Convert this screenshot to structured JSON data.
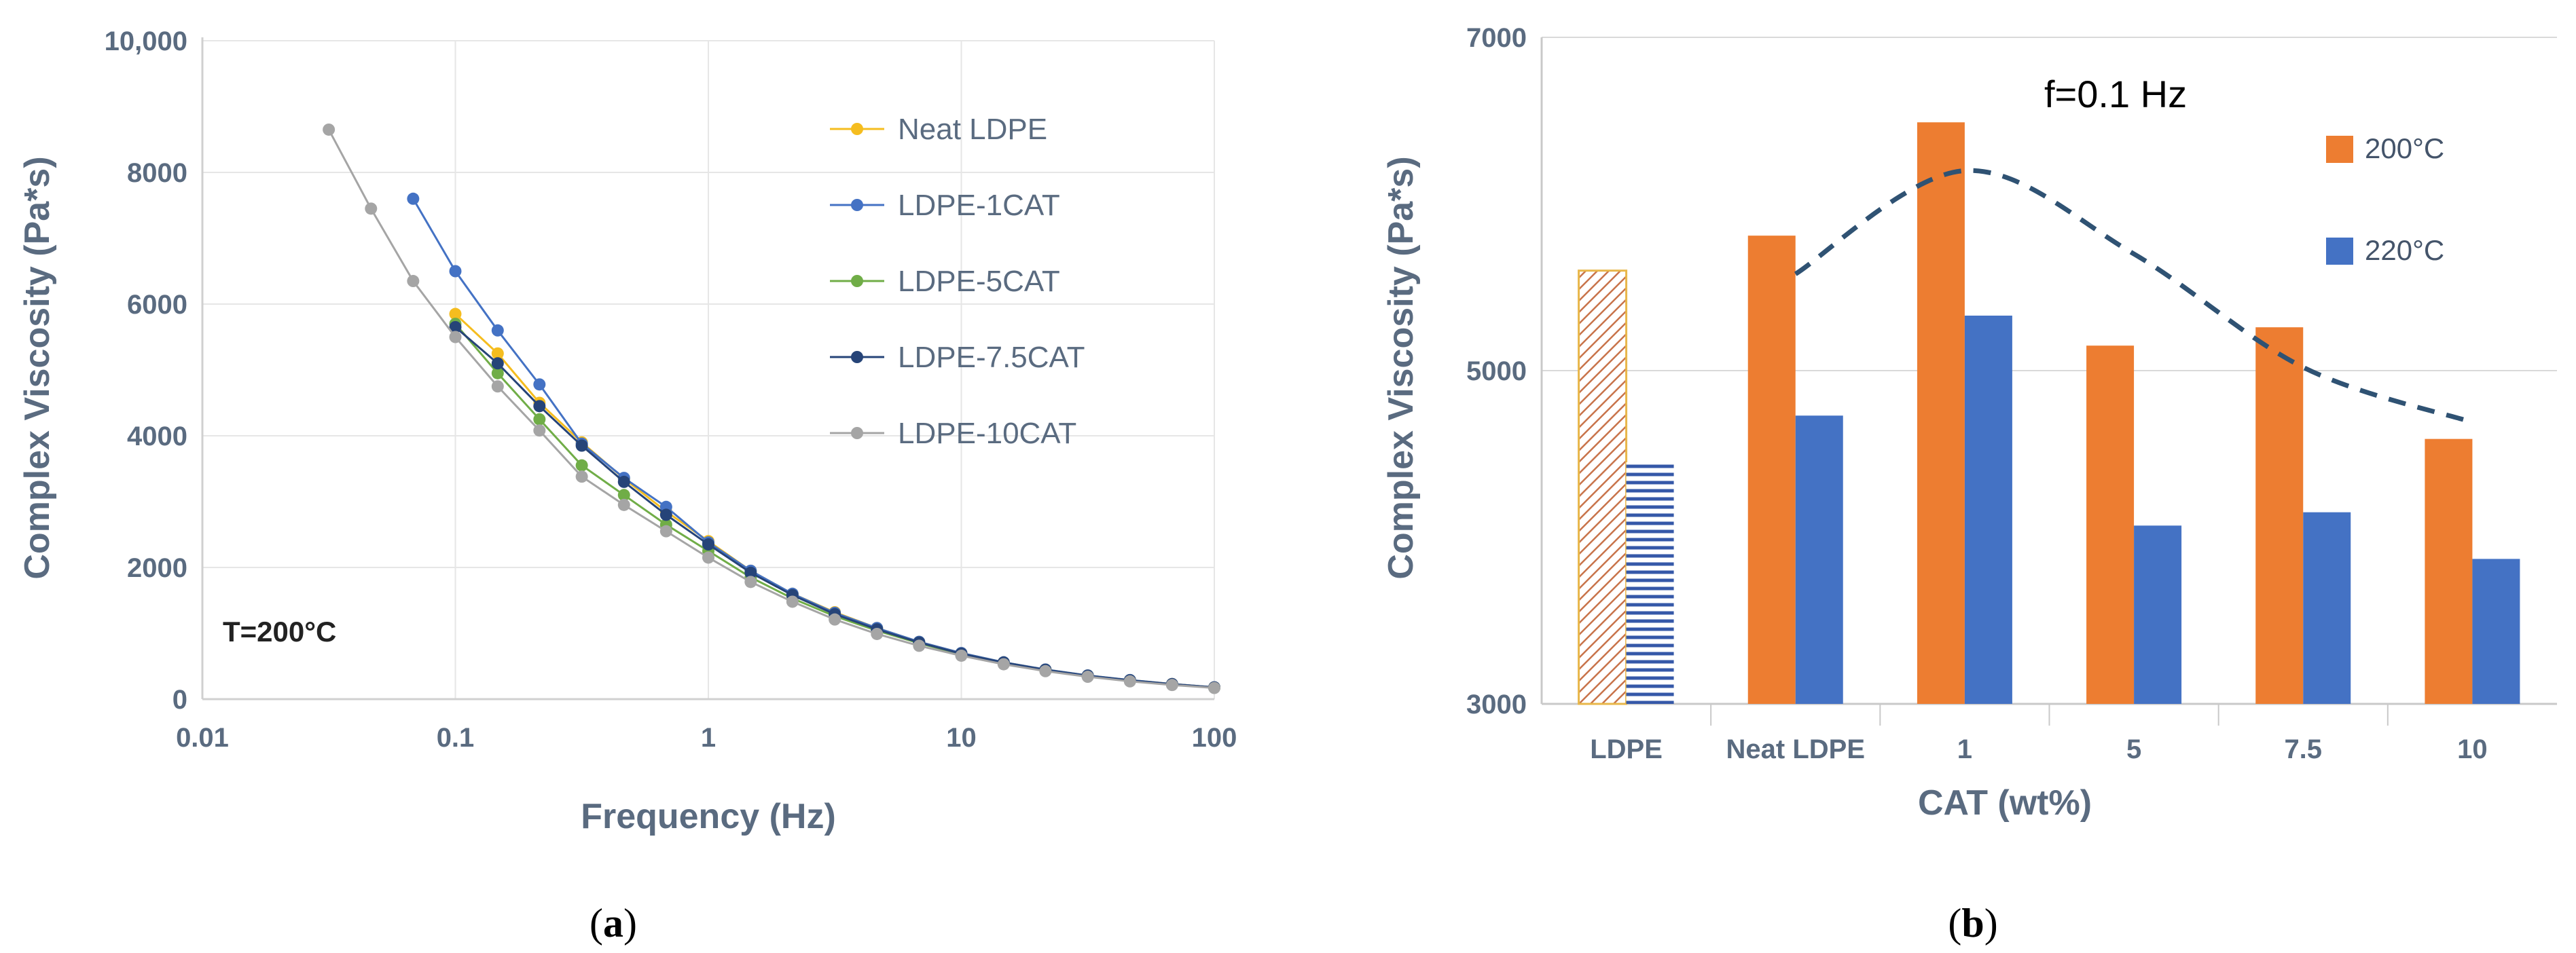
{
  "chart_data": [
    {
      "type": "line",
      "panel": "a",
      "caption": {
        "open": "(",
        "letter": "a",
        "close": ")"
      },
      "xlabel": "Frequency (Hz)",
      "ylabel": "Complex Viscosity (Pa*s)",
      "xscale": "log",
      "xlim": [
        0.01,
        100
      ],
      "ylim": [
        0,
        10000
      ],
      "xticks": [
        0.01,
        0.1,
        1,
        10,
        100
      ],
      "xtick_labels": [
        "0.01",
        "0.1",
        "1",
        "10",
        "100"
      ],
      "yticks": [
        0,
        2000,
        4000,
        6000,
        8000,
        10000
      ],
      "ytick_labels": [
        "0",
        "2000",
        "4000",
        "6000",
        "8000",
        "10,000"
      ],
      "annotation": "T=200°C",
      "legend_position": "top-right",
      "series": [
        {
          "name": "Neat LDPE",
          "color": "#f5bd1f",
          "x": [
            0.1,
            0.147,
            0.215,
            0.316,
            0.464,
            0.681,
            1,
            1.47,
            2.15,
            3.16,
            4.64,
            6.81,
            10,
            14.7,
            21.5,
            31.6,
            46.4,
            68.1,
            100
          ],
          "y": [
            5850,
            5250,
            4500,
            3900,
            3350,
            2850,
            2400,
            1950,
            1600,
            1320,
            1080,
            870,
            700,
            560,
            450,
            360,
            290,
            230,
            180
          ]
        },
        {
          "name": "LDPE-1CAT",
          "color": "#4472c4",
          "x": [
            0.0681,
            0.1,
            0.147,
            0.215,
            0.316,
            0.464,
            0.681,
            1,
            1.47,
            2.15,
            3.16,
            4.64,
            6.81,
            10,
            14.7,
            21.5,
            31.6,
            46.4,
            68.1,
            100
          ],
          "y": [
            7600,
            6500,
            5600,
            4780,
            3880,
            3360,
            2920,
            2380,
            1950,
            1600,
            1310,
            1080,
            870,
            700,
            560,
            450,
            360,
            290,
            230,
            180
          ]
        },
        {
          "name": "LDPE-5CAT",
          "color": "#70ad47",
          "x": [
            0.1,
            0.147,
            0.215,
            0.316,
            0.464,
            0.681,
            1,
            1.47,
            2.15,
            3.16,
            4.64,
            6.81,
            10,
            14.7,
            21.5,
            31.6,
            46.4,
            68.1,
            100
          ],
          "y": [
            5700,
            4950,
            4250,
            3550,
            3100,
            2650,
            2250,
            1850,
            1530,
            1260,
            1040,
            850,
            680,
            550,
            440,
            350,
            280,
            225,
            175
          ]
        },
        {
          "name": "LDPE-7.5CAT",
          "color": "#264478",
          "x": [
            0.1,
            0.147,
            0.215,
            0.316,
            0.464,
            0.681,
            1,
            1.47,
            2.15,
            3.16,
            4.64,
            6.81,
            10,
            14.7,
            21.5,
            31.6,
            46.4,
            68.1,
            100
          ],
          "y": [
            5650,
            5100,
            4450,
            3850,
            3300,
            2800,
            2350,
            1920,
            1580,
            1290,
            1060,
            860,
            690,
            555,
            445,
            355,
            285,
            228,
            178
          ]
        },
        {
          "name": "LDPE-10CAT",
          "color": "#a5a5a5",
          "x": [
            0.0316,
            0.0464,
            0.0681,
            0.1,
            0.147,
            0.215,
            0.316,
            0.464,
            0.681,
            1,
            1.47,
            2.15,
            3.16,
            4.64,
            6.81,
            10,
            14.7,
            21.5,
            31.6,
            46.4,
            68.1,
            100
          ],
          "y": [
            8650,
            7450,
            6350,
            5500,
            4750,
            4080,
            3380,
            2950,
            2550,
            2150,
            1780,
            1480,
            1210,
            990,
            810,
            660,
            530,
            425,
            340,
            270,
            215,
            170
          ]
        }
      ]
    },
    {
      "type": "bar",
      "panel": "b",
      "caption": {
        "open": "(",
        "letter": "b",
        "close": ")"
      },
      "xlabel": "CAT (wt%)",
      "ylabel": "Complex Viscosity (Pa*s)",
      "categories": [
        "LDPE",
        "Neat LDPE",
        "1",
        "5",
        "7.5",
        "10"
      ],
      "ylim": [
        3000,
        7000
      ],
      "yticks": [
        3000,
        5000,
        7000
      ],
      "ytick_labels": [
        "3000",
        "5000",
        "7000"
      ],
      "annotation": "f=0.1 Hz",
      "legend_position": "top-right",
      "series": [
        {
          "name": "200°C",
          "color": "#ed7d31",
          "values": [
            5600,
            5810,
            6490,
            5150,
            5260,
            4590
          ]
        },
        {
          "name": "220°C",
          "color": "#4472c4",
          "values": [
            4450,
            4730,
            5330,
            4070,
            4150,
            3870
          ]
        }
      ],
      "trend_line": {
        "style": "dashed",
        "color": "#2f5273",
        "x_categories": [
          "Neat LDPE",
          "1",
          "5",
          "7.5",
          "10"
        ],
        "values": [
          5580,
          6200,
          5700,
          5020,
          4690
        ]
      }
    }
  ]
}
